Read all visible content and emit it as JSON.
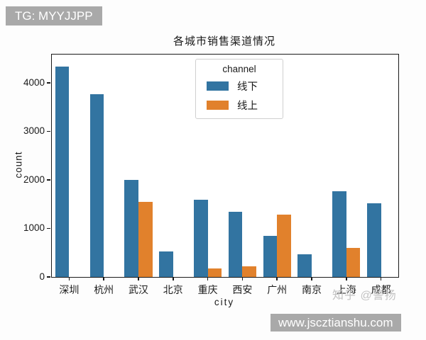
{
  "overlays": {
    "top_left_badge": "TG: MYYJJPP",
    "bottom_right_badge": "www.jscztianshu.com",
    "zhihu_watermark": "知乎 @警扬"
  },
  "colors": {
    "offline_blue": "#3274a1",
    "online_orange": "#e1812c",
    "badge_gray": "#a9a9a9",
    "watermark_gray": "#c3c3c3"
  },
  "chart_data": {
    "type": "bar",
    "title": "各城市销售渠道情况",
    "xlabel": "city",
    "ylabel": "count",
    "categories": [
      "深圳",
      "杭州",
      "武汉",
      "北京",
      "重庆",
      "西安",
      "广州",
      "南京",
      "上海",
      "成都"
    ],
    "series": [
      {
        "name": "线下",
        "color": "#3274a1",
        "values": [
          4330,
          3770,
          2000,
          520,
          1590,
          1340,
          850,
          460,
          1760,
          1510
        ]
      },
      {
        "name": "线上",
        "color": "#e1812c",
        "values": [
          0,
          0,
          1540,
          0,
          170,
          220,
          1290,
          0,
          600,
          0
        ]
      }
    ],
    "legend": {
      "title": "channel",
      "position": "upper-center-inside"
    },
    "yticks": [
      0,
      1000,
      2000,
      3000,
      4000
    ],
    "ylim": [
      0,
      4580
    ],
    "grid": false
  }
}
